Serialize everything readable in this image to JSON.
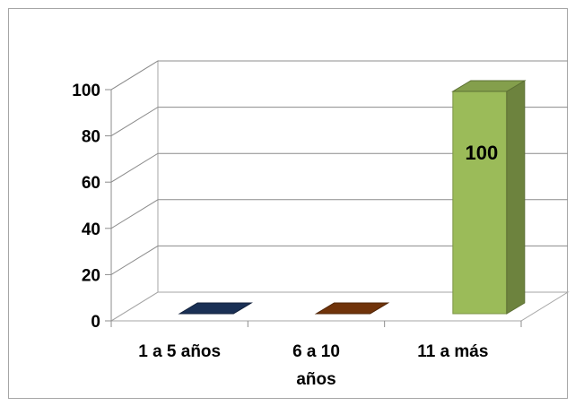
{
  "chart_data": {
    "type": "bar",
    "title": "",
    "xlabel": "",
    "ylabel": "",
    "ylim": [
      0,
      100
    ],
    "yticks": [
      0,
      20,
      40,
      60,
      80,
      100
    ],
    "grid": true,
    "style": "3d-column",
    "categories": [
      [
        "1 a 5 años"
      ],
      [
        "6 a 10",
        "años"
      ],
      [
        "11 a más"
      ]
    ],
    "series": [
      {
        "values": [
          0,
          0,
          100
        ],
        "colors": [
          "#1f3864",
          "#843c0c",
          "#9bbb59"
        ],
        "data_labels": [
          "",
          "",
          "100"
        ]
      }
    ]
  }
}
